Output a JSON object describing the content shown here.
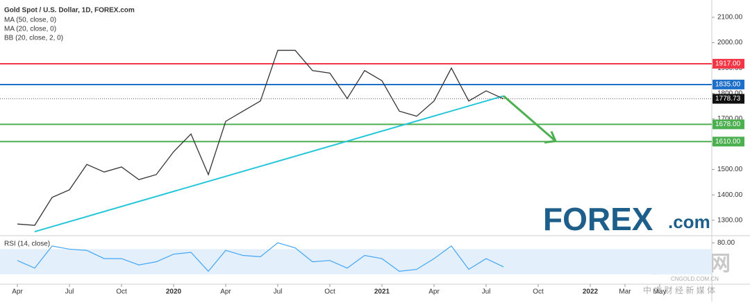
{
  "chart_data": {
    "type": "line",
    "title": "Gold Spot / U.S. Dollar, 1D, FOREX.com",
    "indicators": [
      "MA (50, close, 0)",
      "MA (20, close, 0)",
      "BB (20, close, 2, 0)"
    ],
    "x": [
      "2019-04",
      "2019-05",
      "2019-06",
      "2019-07",
      "2019-08",
      "2019-09",
      "2019-10",
      "2019-11",
      "2019-12",
      "2020-01",
      "2020-02",
      "2020-03",
      "2020-04",
      "2020-05",
      "2020-06",
      "2020-07",
      "2020-08",
      "2020-09",
      "2020-10",
      "2020-11",
      "2020-12",
      "2021-01",
      "2021-02",
      "2021-03",
      "2021-04",
      "2021-05",
      "2021-06",
      "2021-07",
      "2021-08"
    ],
    "series": [
      {
        "name": "Gold Spot / U.S. Dollar",
        "color": "#333333",
        "values": [
          1285,
          1280,
          1390,
          1420,
          1520,
          1490,
          1510,
          1460,
          1480,
          1570,
          1640,
          1480,
          1690,
          1730,
          1770,
          1970,
          1970,
          1890,
          1880,
          1780,
          1890,
          1850,
          1730,
          1710,
          1770,
          1900,
          1770,
          1810,
          1778.73
        ]
      }
    ],
    "xlim": [
      "2019-03",
      "2022-08"
    ],
    "xticks": [
      {
        "value": "2019-04",
        "label": "Apr"
      },
      {
        "value": "2019-07",
        "label": "Jul"
      },
      {
        "value": "2019-10",
        "label": "Oct"
      },
      {
        "value": "2020-01",
        "label": "2020"
      },
      {
        "value": "2020-04",
        "label": "Apr"
      },
      {
        "value": "2020-07",
        "label": "Jul"
      },
      {
        "value": "2020-10",
        "label": "Oct"
      },
      {
        "value": "2021-01",
        "label": "2021"
      },
      {
        "value": "2021-04",
        "label": "Apr"
      },
      {
        "value": "2021-07",
        "label": "Jul"
      },
      {
        "value": "2021-10",
        "label": "Oct"
      },
      {
        "value": "2022-01",
        "label": "2022"
      },
      {
        "value": "2022-03",
        "label": "Mar"
      },
      {
        "value": "2022-05",
        "label": "May"
      }
    ],
    "ylim": [
      1250,
      2130
    ],
    "yticks": [
      {
        "value": 1300,
        "label": "1300.00"
      },
      {
        "value": 1400,
        "label": "1400.00"
      },
      {
        "value": 1500,
        "label": "1500.00"
      },
      {
        "value": 1600,
        "label": "1600.00"
      },
      {
        "value": 1700,
        "label": "1700.00"
      },
      {
        "value": 1800,
        "label": "1800.00"
      },
      {
        "value": 1900,
        "label": "1900.00"
      },
      {
        "value": 2000,
        "label": "2000.00"
      },
      {
        "value": 2100,
        "label": "2100.00"
      }
    ],
    "levels": [
      {
        "value": 1917,
        "label": "1917.00",
        "color": "#f23645"
      },
      {
        "value": 1835,
        "label": "1835.00",
        "color": "#1e6fc8"
      },
      {
        "value": 1678,
        "label": "1678.00",
        "color": "#4caf50"
      },
      {
        "value": 1610,
        "label": "1610.00",
        "color": "#4caf50"
      }
    ],
    "last_price": {
      "value": 1778.73,
      "label": "1778.73"
    },
    "trendline": {
      "x": [
        "2019-05",
        "2021-08"
      ],
      "y": [
        1255,
        1790
      ],
      "color": "#26c6da"
    },
    "projection": {
      "x": [
        "2021-08",
        "2021-11"
      ],
      "y": [
        1790,
        1612
      ],
      "color": "#4caf50"
    },
    "rsi": {
      "title": "RSI (14, close)",
      "ylim": [
        20,
        88
      ],
      "yticks": [
        {
          "value": 80,
          "label": "80.00"
        }
      ],
      "values": [
        52,
        40,
        75,
        70,
        68,
        55,
        55,
        45,
        50,
        62,
        65,
        35,
        68,
        60,
        58,
        80,
        72,
        50,
        52,
        40,
        60,
        55,
        35,
        38,
        55,
        75,
        38,
        55,
        42
      ]
    }
  },
  "logo": {
    "main": "FOREX",
    "suffix": ".com"
  },
  "watermark": {
    "name": "中金网",
    "site": "CNGOLD.COM.CN",
    "slogan": "中 文 财 经 新 媒 体"
  }
}
